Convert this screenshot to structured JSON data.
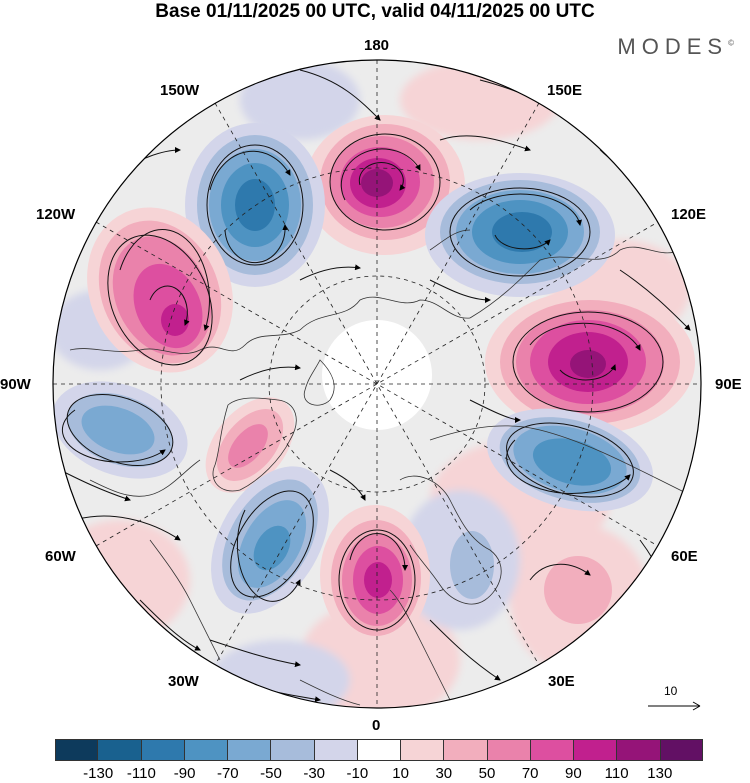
{
  "header": {
    "title": "Base 01/11/2025 00 UTC, valid 04/11/2025 00 UTC",
    "brand": "MODES",
    "brand_mark": "©"
  },
  "map": {
    "projection": "north-polar-stereographic",
    "longitude_labels": [
      "180",
      "150E",
      "120E",
      "90E",
      "60E",
      "30E",
      "0",
      "30W",
      "60W",
      "90W",
      "120W",
      "150W"
    ],
    "reference_vector_label": "10"
  },
  "colorbar": {
    "ticks": [
      "-130",
      "-110",
      "-90",
      "-70",
      "-50",
      "-30",
      "-10",
      "10",
      "30",
      "50",
      "70",
      "90",
      "110",
      "130"
    ],
    "colors": [
      "#0d3a5c",
      "#19618f",
      "#2e79ad",
      "#4e93c2",
      "#7aa9d2",
      "#a7bcdb",
      "#d3d5ea",
      "#ffffff",
      "#f6d4d6",
      "#f2aebd",
      "#ea82ab",
      "#dd4fa0",
      "#c1208e",
      "#951478",
      "#621064"
    ]
  }
}
